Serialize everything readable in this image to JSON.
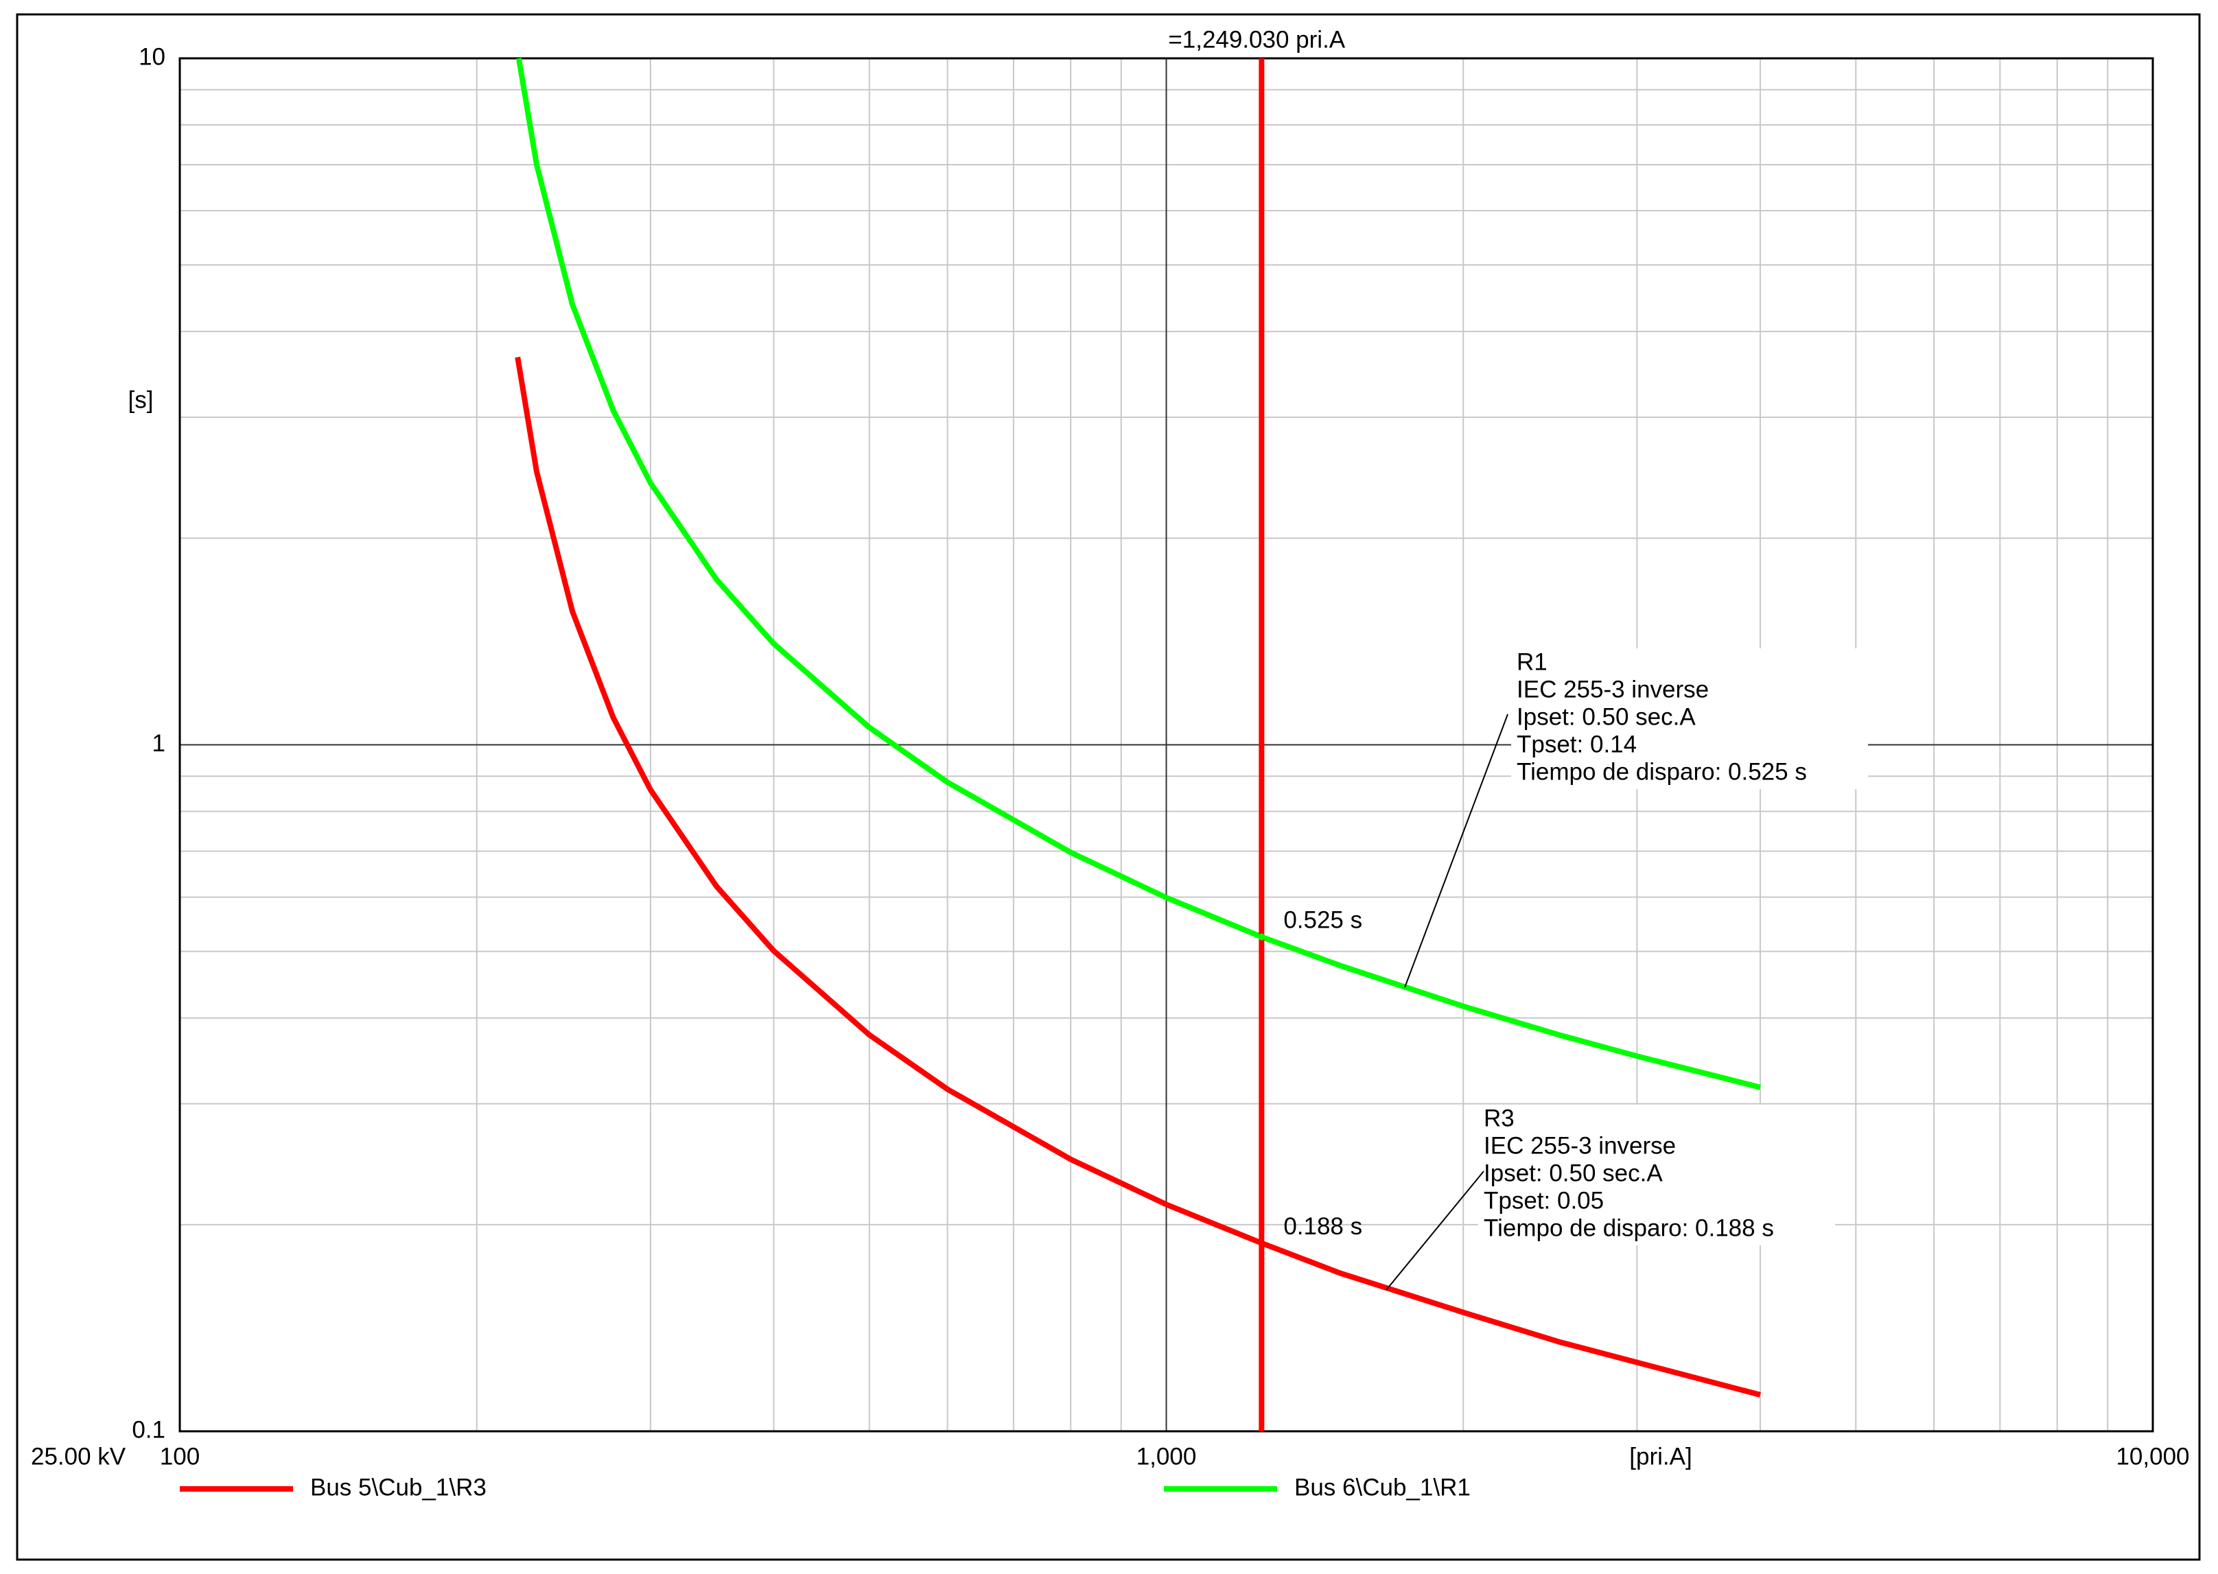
{
  "chart_data": {
    "type": "line",
    "log_x": true,
    "log_y": true,
    "grid": true,
    "xlim": [
      100,
      10000
    ],
    "xticks": [
      100,
      {
        "value": 1000,
        "label": "1,000"
      },
      {
        "value": 10000,
        "label": "10,000"
      }
    ],
    "xminor": [
      200,
      300,
      400,
      500,
      600,
      700,
      800,
      900,
      2000,
      3000,
      4000,
      5000,
      6000,
      7000,
      8000,
      9000
    ],
    "ylim": [
      0.1,
      10
    ],
    "yticks": [
      0.1,
      1,
      10
    ],
    "yminor": [
      0.2,
      0.3,
      0.4,
      0.5,
      0.6,
      0.7,
      0.8,
      0.9,
      2,
      3,
      4,
      5,
      6,
      7,
      8,
      9
    ],
    "x_label": "[pri.A]",
    "y_label": "[s]",
    "voltage_label": "25.00 kV",
    "marker": {
      "x": 1249.03,
      "label": "=1,249.030 pri.A",
      "color": "#ff0000"
    },
    "series": [
      {
        "name": "Bus 5\\Cub_1\\R3",
        "color": "#ff0000",
        "x": [
          220,
          230,
          250,
          275,
          300,
          350,
          400,
          500,
          600,
          800,
          1000,
          1249.03,
          1500,
          2000,
          2500,
          3000,
          4000
        ],
        "values": [
          3.67,
          2.5,
          1.565,
          1.096,
          0.86,
          0.622,
          0.501,
          0.378,
          0.315,
          0.249,
          0.214,
          0.188,
          0.17,
          0.149,
          0.135,
          0.126,
          0.113
        ],
        "crossing": {
          "value": 0.188,
          "label": "0.188 s"
        },
        "annotation": [
          "R3",
          "IEC 255-3 inverse",
          "Ipset: 0.50 sec.A",
          "Tpset: 0.05",
          "Tiempo de disparo: 0.188 s"
        ]
      },
      {
        "name": "Bus 6\\Cub_1\\R1",
        "color": "#00ff00",
        "x": [
          220.6,
          230,
          250,
          275,
          300,
          350,
          400,
          500,
          600,
          800,
          1000,
          1249.03,
          1500,
          2000,
          2500,
          3000,
          4000
        ],
        "values": [
          10,
          7,
          4.38,
          3.07,
          2.407,
          1.741,
          1.404,
          1.06,
          0.882,
          0.697,
          0.599,
          0.525,
          0.477,
          0.416,
          0.378,
          0.352,
          0.317
        ],
        "crossing": {
          "value": 0.525,
          "label": "0.525 s"
        },
        "annotation": [
          "R1",
          "IEC 255-3 inverse",
          "Ipset: 0.50 sec.A",
          "Tpset: 0.14",
          "Tiempo de disparo: 0.525 s"
        ]
      }
    ]
  }
}
